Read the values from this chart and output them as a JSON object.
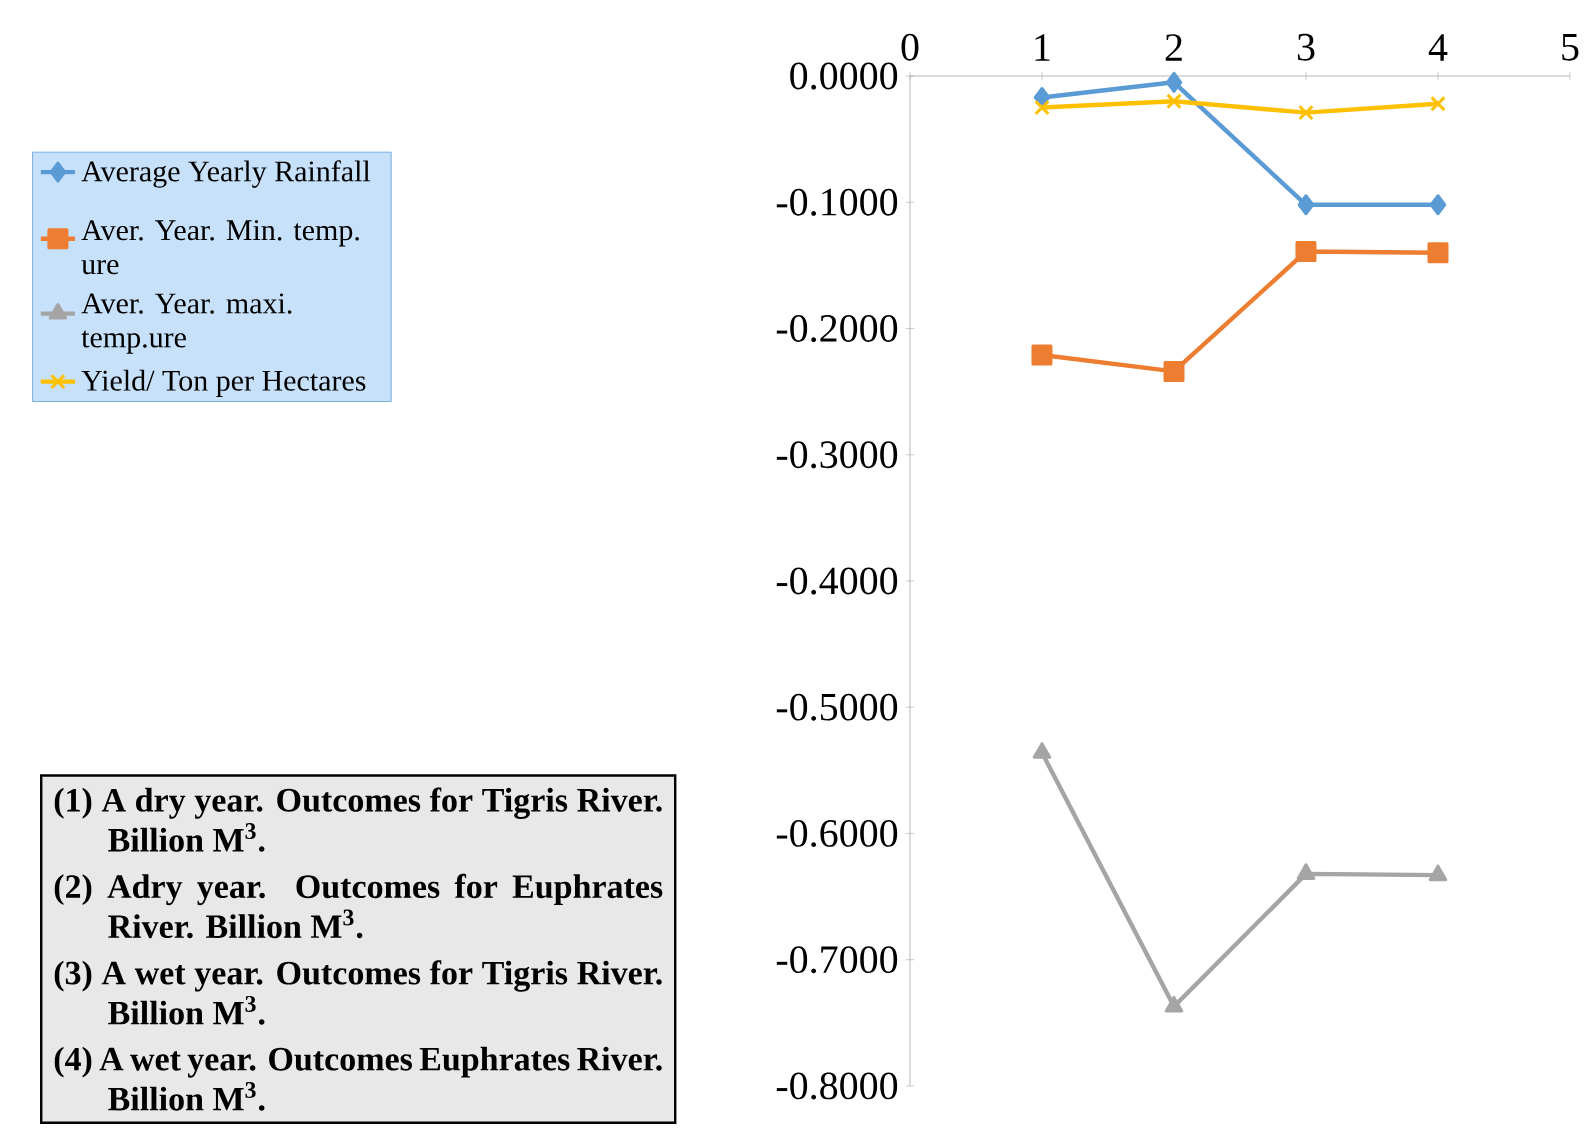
{
  "chart_data": {
    "type": "line",
    "x": [
      1,
      2,
      3,
      4
    ],
    "series": [
      {
        "name": "Average Yearly Rainfall",
        "color": "#5b9bd5",
        "marker": "diamond",
        "values": [
          -0.017,
          -0.005,
          -0.102,
          -0.102
        ]
      },
      {
        "name": "Aver. Year. Min. temp. ure",
        "color": "#ed7d31",
        "marker": "square",
        "values": [
          -0.221,
          -0.234,
          -0.139,
          -0.14
        ]
      },
      {
        "name": "Aver. Year. maxi. temp.ure",
        "color": "#a5a5a5",
        "marker": "triangle",
        "values": [
          -0.536,
          -0.737,
          -0.632,
          -0.633
        ]
      },
      {
        "name": "Yield/ Ton per Hectares",
        "color": "#ffc000",
        "marker": "cross",
        "values": [
          -0.025,
          -0.02,
          -0.029,
          -0.022
        ]
      }
    ],
    "xlim": [
      0,
      5
    ],
    "xticks": [
      0,
      1,
      2,
      3,
      4,
      5
    ],
    "ylim": [
      -0.8,
      0
    ],
    "yticks": [
      {
        "value": 0,
        "label": "0.0000"
      },
      {
        "value": -0.1,
        "label": "-0.1000"
      },
      {
        "value": -0.2,
        "label": "-0.2000"
      },
      {
        "value": -0.3,
        "label": "-0.3000"
      },
      {
        "value": -0.4,
        "label": "-0.4000"
      },
      {
        "value": -0.5,
        "label": "-0.5000"
      },
      {
        "value": -0.6,
        "label": "-0.6000"
      },
      {
        "value": -0.7,
        "label": "-0.7000"
      },
      {
        "value": -0.8,
        "label": "-0.8000"
      }
    ],
    "legend": "left",
    "annotations": [
      "(1) A dry year. Outcomes for Tigris River. Billion M$^{3}$.",
      "(2) Adry year. Outcomes for Euphrates River. Billion M$^{3}$.",
      "(3) A wet year. Outcomes for Tigris River. Billion M$^{3}$.",
      "(4) A wet year. Outcomes Euphrates River. Billion M$^{3}$."
    ]
  }
}
